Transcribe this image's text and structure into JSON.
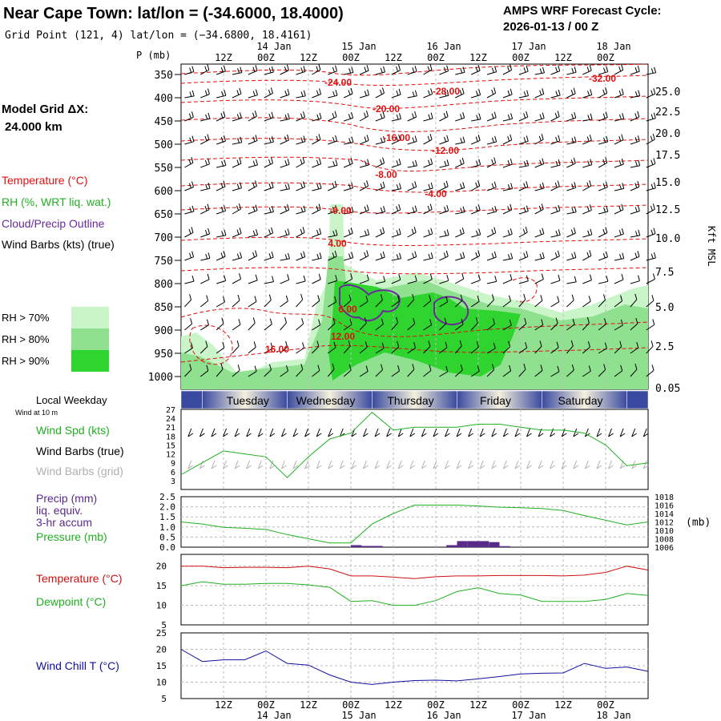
{
  "header": {
    "title": "Near Cape Town:  lat/lon = (-34.6000, 18.4000)",
    "subtitle": "Grid Point (121, 4) lat/lon = (−34.6800, 18.4161)",
    "cycle_line1": "AMPS WRF Forecast Cycle:",
    "cycle_line2": "2026-01-13 / 00  Z"
  },
  "time_axis": {
    "hour_labels": [
      "12Z",
      "00Z",
      "12Z",
      "00Z",
      "12Z",
      "00Z",
      "12Z",
      "00Z",
      "12Z",
      "00Z"
    ],
    "date_labels": [
      "14 Jan",
      "15 Jan",
      "16 Jan",
      "17 Jan",
      "18 Jan"
    ],
    "days": [
      "Tuesday",
      "Wednesday",
      "Thursday",
      "Friday",
      "Saturday"
    ]
  },
  "upper_panel": {
    "pressure_unit_label": "P (mb)",
    "pressure_levels": [
      "350",
      "400",
      "450",
      "500",
      "550",
      "600",
      "650",
      "700",
      "750",
      "800",
      "850",
      "900",
      "950",
      "1000"
    ],
    "height_ticks": [
      "25.0",
      "22.5",
      "20.0",
      "17.5",
      "15.0",
      "12.5",
      "10.0",
      "7.5",
      "5.0",
      "2.5",
      "0.05"
    ],
    "height_unit": "Kft MSL",
    "model_grid_line1": "Model Grid ΔX:",
    "model_grid_line2": "24.000 km",
    "legend": [
      {
        "label": "Temperature (°C)",
        "color": "#e01010"
      },
      {
        "label": "RH (%, WRT liq. wat.)",
        "color": "#20b020"
      },
      {
        "label": "Cloud/Precip Outline",
        "color": "#6a2a9a"
      },
      {
        "label": "Wind Barbs (kts) (true)",
        "color": "#000000"
      }
    ],
    "rh_legend": [
      {
        "label": "RH > 70%",
        "color": "#c9f5c9"
      },
      {
        "label": "RH > 80%",
        "color": "#8fe08f"
      },
      {
        "label": "RH > 90%",
        "color": "#2fd42f"
      }
    ],
    "temp_contour_labels": [
      "-24.00",
      "-28.00",
      "-32.00",
      "-20.00",
      "-16.00",
      "-12.00",
      "-8.00",
      "-4.00",
      "-0.00",
      "4.00",
      "6.00",
      "12.00",
      "16.00"
    ]
  },
  "wind_panel": {
    "local_weekday": "Local Weekday",
    "wind_at": "Wind at 10 m",
    "legend": [
      {
        "label": "Wind Spd (kts)",
        "color": "#20b020"
      },
      {
        "label": "Wind Barbs (true)",
        "color": "#000000"
      },
      {
        "label": "Wind Barbs (grid)",
        "color": "#b0b0b0"
      }
    ],
    "y_ticks": [
      "27",
      "24",
      "21",
      "18",
      "15",
      "12",
      "9",
      "6",
      "3"
    ]
  },
  "precip_panel": {
    "legend_lines": [
      "Precip (mm)",
      "liq. equiv.",
      "3-hr accum"
    ],
    "pressure_label": "Pressure (mb)",
    "left_ticks": [
      "2.5",
      "2.0",
      "1.5",
      "1.0",
      "0.5",
      "0.0"
    ],
    "right_ticks": [
      "1018",
      "1016",
      "1014",
      "1012",
      "1010",
      "1008",
      "1006"
    ],
    "right_unit": "(mb)",
    "precip_color": "#5a2a8a",
    "pressure_color": "#20b020"
  },
  "temp_panel": {
    "temperature_label": "Temperature (°C)",
    "dewpoint_label": "Dewpoint (°C)",
    "ticks": [
      "20",
      "15",
      "10",
      "5"
    ],
    "temperature_color": "#cc1010",
    "dewpoint_color": "#20b020"
  },
  "windchill_panel": {
    "label": "Wind Chill T (°C)",
    "ticks": [
      "25",
      "20",
      "15",
      "10",
      "5"
    ],
    "color": "#1010a0"
  },
  "chart_data": [
    {
      "type": "line",
      "panel": "10 m wind speed",
      "ylabel": "Wind Spd (kts)",
      "ylim": [
        0,
        27
      ],
      "x_hours": [
        0,
        6,
        12,
        18,
        24,
        30,
        36,
        42,
        48,
        54,
        60,
        66,
        72,
        78,
        84,
        90,
        96,
        102,
        108,
        114,
        120,
        126,
        132
      ],
      "series": [
        {
          "name": "Wind Spd (kts)",
          "values": [
            5,
            9,
            13,
            12,
            11,
            4,
            11,
            17,
            19,
            26,
            20,
            21,
            21,
            21,
            22,
            22,
            21,
            20,
            20,
            19,
            15,
            8,
            9
          ]
        }
      ]
    },
    {
      "type": "line",
      "panel": "Pressure (mb)",
      "ylabel": "Pressure (mb)",
      "ylim": [
        1006,
        1018
      ],
      "x_hours": [
        0,
        6,
        12,
        18,
        24,
        30,
        36,
        42,
        48,
        54,
        60,
        66,
        72,
        78,
        84,
        90,
        96,
        102,
        108,
        114,
        120,
        126,
        132
      ],
      "series": [
        {
          "name": "Pressure (mb)",
          "values": [
            1012,
            1011.5,
            1010.7,
            1010.5,
            1010.2,
            1009,
            1008,
            1007,
            1007,
            1011.5,
            1014,
            1016,
            1016,
            1016,
            1015.8,
            1015.5,
            1015.4,
            1015.2,
            1014.7,
            1013.5,
            1012.4,
            1011.3,
            1012
          ]
        }
      ]
    },
    {
      "type": "bar",
      "panel": "Precip (mm) 3-hr accum",
      "ylabel": "Precip (mm)",
      "ylim": [
        0,
        2.5
      ],
      "bars": [
        {
          "start_hour": 48,
          "end_hour": 51,
          "value": 0.1
        },
        {
          "start_hour": 51,
          "end_hour": 57,
          "value": 0.06
        },
        {
          "start_hour": 75,
          "end_hour": 78,
          "value": 0.1
        },
        {
          "start_hour": 78,
          "end_hour": 81,
          "value": 0.3
        },
        {
          "start_hour": 81,
          "end_hour": 87,
          "value": 0.3
        },
        {
          "start_hour": 87,
          "end_hour": 90,
          "value": 0.25
        },
        {
          "start_hour": 90,
          "end_hour": 93,
          "value": 0.05
        }
      ]
    },
    {
      "type": "line",
      "panel": "Temperature / Dewpoint",
      "ylim": [
        5,
        23
      ],
      "x_hours": [
        0,
        6,
        12,
        18,
        24,
        30,
        36,
        42,
        48,
        54,
        60,
        66,
        72,
        78,
        84,
        90,
        96,
        102,
        108,
        114,
        120,
        126,
        132
      ],
      "series": [
        {
          "name": "Temperature (°C)",
          "values": [
            20,
            20,
            19.6,
            19.7,
            19.7,
            19.6,
            20,
            19.3,
            17.5,
            17.5,
            17.2,
            16.8,
            17.3,
            17.5,
            17.5,
            17.6,
            17.6,
            17.6,
            17.5,
            17.7,
            18.4,
            20,
            19
          ]
        },
        {
          "name": "Dewpoint (°C)",
          "values": [
            15,
            16,
            15.4,
            15.4,
            15.6,
            15.6,
            15.2,
            14.6,
            11,
            11.2,
            10,
            10,
            11.2,
            13.5,
            14.5,
            13,
            12.6,
            11,
            11,
            11,
            11.5,
            13,
            12.5
          ]
        }
      ]
    },
    {
      "type": "line",
      "panel": "Wind Chill T",
      "ylim": [
        5,
        25
      ],
      "x_hours": [
        0,
        6,
        12,
        18,
        24,
        30,
        36,
        42,
        48,
        54,
        60,
        66,
        72,
        78,
        84,
        90,
        96,
        102,
        108,
        114,
        120,
        126,
        132
      ],
      "series": [
        {
          "name": "Wind Chill T (°C)",
          "values": [
            20,
            16.3,
            16.8,
            16.8,
            19.5,
            15.7,
            15.2,
            12.2,
            10,
            9.3,
            10,
            10.5,
            10.6,
            10.4,
            11,
            11.7,
            12.5,
            12.7,
            12.8,
            15.7,
            14.2,
            14.6,
            13.3
          ]
        }
      ]
    }
  ]
}
